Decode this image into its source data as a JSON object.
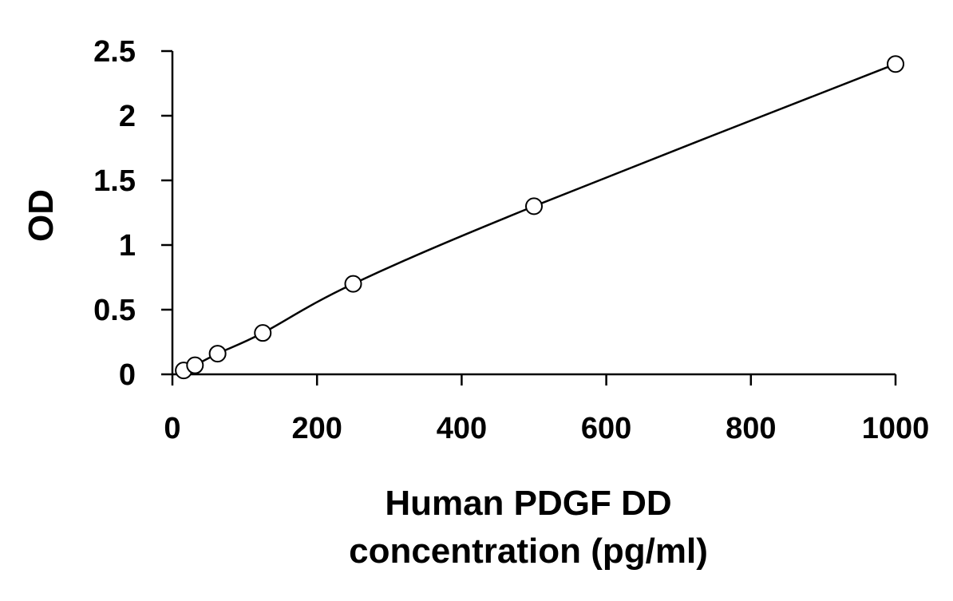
{
  "chart_data": {
    "type": "scatter",
    "title": "",
    "xlabel_lines": [
      "Human PDGF DD",
      "concentration (pg/ml)"
    ],
    "ylabel": "OD",
    "xlim": [
      0,
      1000
    ],
    "ylim": [
      0,
      2.5
    ],
    "x_ticks": [
      0,
      200,
      400,
      600,
      800,
      1000
    ],
    "y_ticks": [
      0,
      0.5,
      1,
      1.5,
      2,
      2.5
    ],
    "x_tick_labels": [
      "0",
      "200",
      "400",
      "600",
      "800",
      "1000"
    ],
    "y_tick_labels": [
      "0",
      "0.5",
      "1",
      "1.5",
      "2",
      "2.5"
    ],
    "grid": false,
    "legend": "none",
    "series": [
      {
        "marker": "open-circle",
        "line": "smooth-fit",
        "color": "#000000",
        "x": [
          15.6,
          31.25,
          62.5,
          125,
          250,
          500,
          1000
        ],
        "y": [
          0.03,
          0.07,
          0.16,
          0.32,
          0.7,
          1.3,
          2.4
        ]
      }
    ]
  }
}
